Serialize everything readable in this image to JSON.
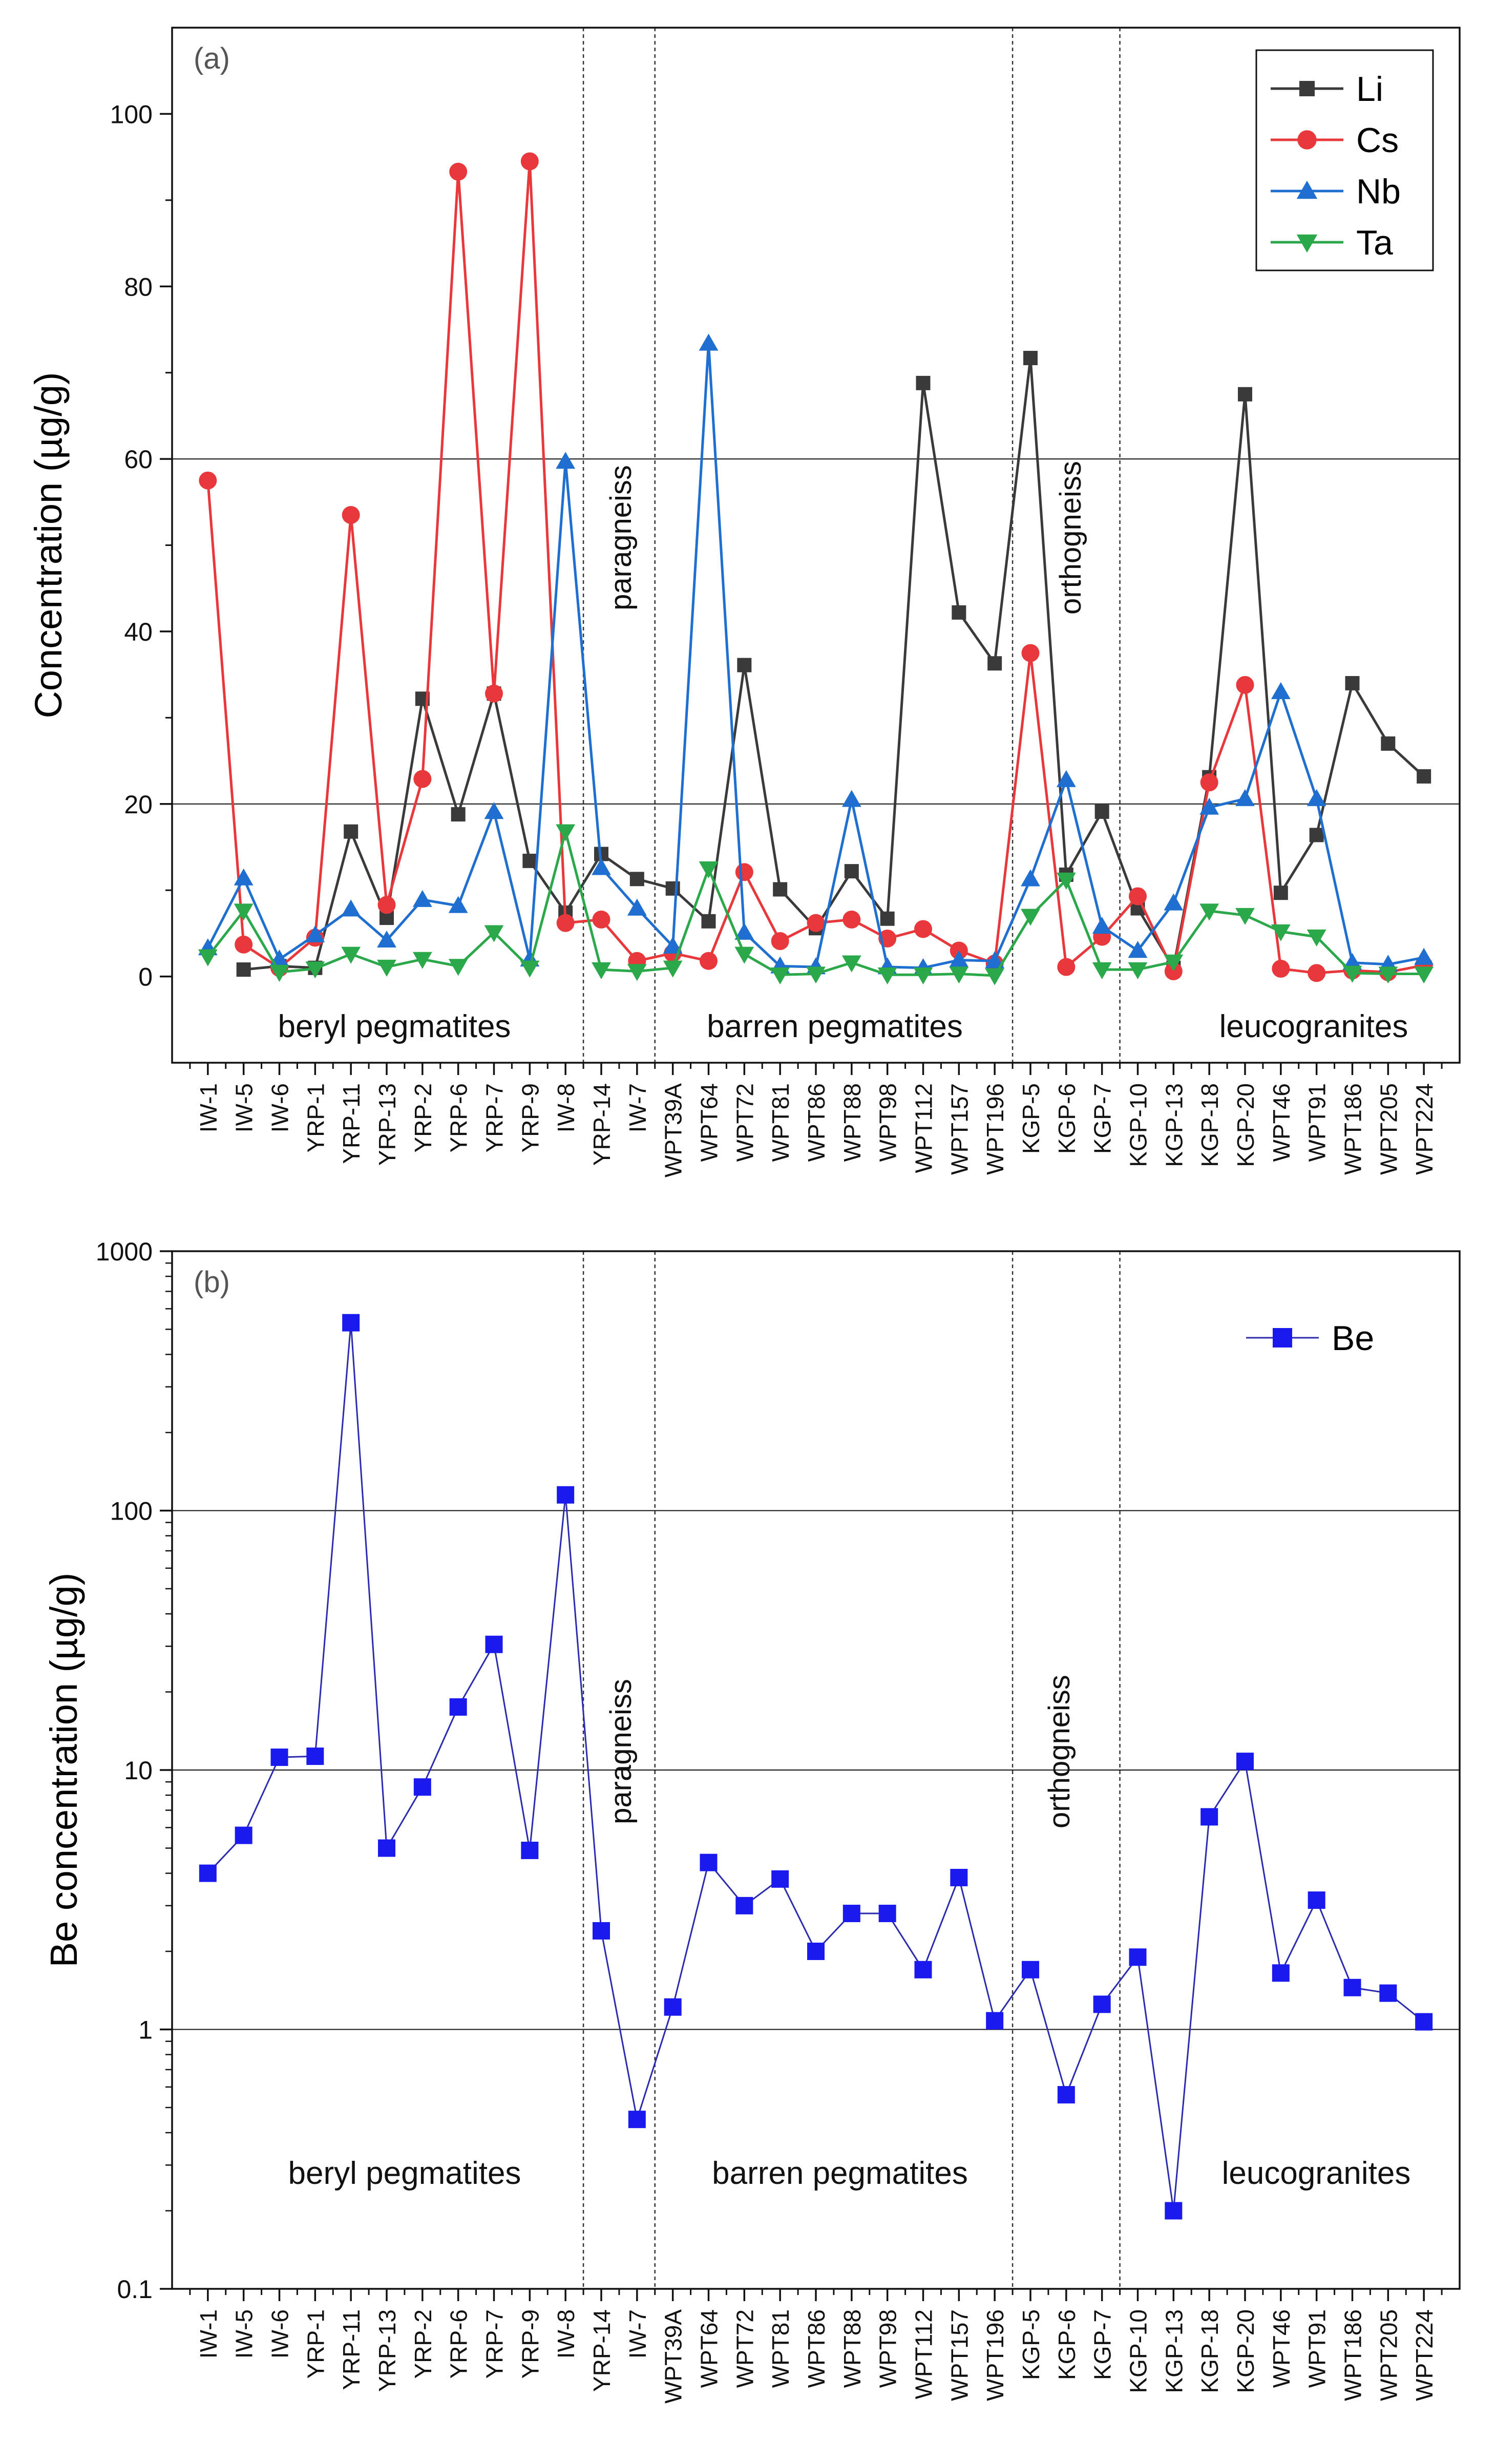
{
  "chart_data": [
    {
      "panel_label": "(a)",
      "type": "line",
      "ylabel": "Concentration (µg/g)",
      "ylim": [
        -10,
        110
      ],
      "yticks": [
        0,
        20,
        40,
        60,
        80,
        100
      ],
      "gridlines_y": [
        20,
        60
      ],
      "categories": [
        "IW-1",
        "IW-5",
        "IW-6",
        "YRP-1",
        "YRP-11",
        "YRP-13",
        "YRP-2",
        "YRP-6",
        "YRP-7",
        "YRP-9",
        "IW-8",
        "YRP-14",
        "IW-7",
        "WPT39A",
        "WPT64",
        "WPT72",
        "WPT81",
        "WPT86",
        "WPT88",
        "WPT98",
        "WPT112",
        "WPT157",
        "WPT196",
        "KGP-5",
        "KGP-6",
        "KGP-7",
        "KGP-10",
        "KGP-13",
        "KGP-18",
        "KGP-20",
        "WPT46",
        "WPT91",
        "WPT186",
        "WPT205",
        "WPT224"
      ],
      "separators_after_index": [
        10,
        12,
        22,
        25
      ],
      "group_labels": [
        "beryl pegmatites",
        "paragneiss",
        "barren pegmatites",
        "orthogneiss",
        "leucogranites"
      ],
      "legend": "top-right",
      "series": [
        {
          "name": "Li",
          "color": "#3a3a3a",
          "marker": "square",
          "values": [
            null,
            0.8,
            1.2,
            1.0,
            16.8,
            6.8,
            32.2,
            18.8,
            32.8,
            13.4,
            7.4,
            14.2,
            11.3,
            10.2,
            6.4,
            36.1,
            10.1,
            5.6,
            12.2,
            6.7,
            68.8,
            42.2,
            36.3,
            71.7,
            11.8,
            19.1,
            7.9,
            1.0,
            23.1,
            67.5,
            9.7,
            16.4,
            34.0,
            27.0,
            23.2
          ]
        },
        {
          "name": "Cs",
          "color": "#e8383b",
          "marker": "circle",
          "values": [
            57.5,
            3.7,
            1.0,
            4.5,
            53.5,
            8.3,
            22.9,
            93.3,
            32.8,
            94.5,
            6.2,
            6.6,
            1.8,
            2.7,
            1.8,
            12.1,
            4.1,
            6.2,
            6.6,
            4.4,
            5.5,
            3.0,
            1.5,
            37.5,
            1.1,
            4.6,
            9.3,
            0.6,
            22.5,
            33.8,
            0.9,
            0.4,
            0.7,
            0.5,
            1.3
          ]
        },
        {
          "name": "Nb",
          "color": "#1f6fd0",
          "marker": "triangle-up",
          "values": [
            3.3,
            11.4,
            2.0,
            4.8,
            7.8,
            4.2,
            8.9,
            8.2,
            19.1,
            2.0,
            59.7,
            12.6,
            7.9,
            3.5,
            73.4,
            5.1,
            1.2,
            1.1,
            20.5,
            1.1,
            1.0,
            1.9,
            1.8,
            11.3,
            22.8,
            5.8,
            3.0,
            8.5,
            19.6,
            20.6,
            33.0,
            20.6,
            1.6,
            1.4,
            2.2
          ]
        },
        {
          "name": "Ta",
          "color": "#2aa84a",
          "marker": "triangle-down",
          "values": [
            2.3,
            7.6,
            0.5,
            0.9,
            2.6,
            1.1,
            2.0,
            1.2,
            5.1,
            1.0,
            16.8,
            0.8,
            0.6,
            1.0,
            12.5,
            2.6,
            0.2,
            0.3,
            1.6,
            0.2,
            0.2,
            0.3,
            0.1,
            7.0,
            11.2,
            0.8,
            0.8,
            1.7,
            7.6,
            7.1,
            5.2,
            4.6,
            0.4,
            0.3,
            0.3
          ]
        }
      ]
    },
    {
      "panel_label": "(b)",
      "type": "line",
      "yscale": "log",
      "ylabel": "Be concentration (µg/g)",
      "ylim": [
        0.1,
        1000
      ],
      "yticks": [
        0.1,
        1,
        10,
        100,
        1000
      ],
      "ytick_labels": [
        "0.1",
        "1",
        "10",
        "100",
        "1000"
      ],
      "gridlines_y": [
        1,
        10,
        100
      ],
      "categories": [
        "IW-1",
        "IW-5",
        "IW-6",
        "YRP-1",
        "YRP-11",
        "YRP-13",
        "YRP-2",
        "YRP-6",
        "YRP-7",
        "YRP-9",
        "IW-8",
        "YRP-14",
        "IW-7",
        "WPT39A",
        "WPT64",
        "WPT72",
        "WPT81",
        "WPT86",
        "WPT88",
        "WPT98",
        "WPT112",
        "WPT157",
        "WPT196",
        "KGP-5",
        "KGP-6",
        "KGP-7",
        "KGP-10",
        "KGP-13",
        "KGP-18",
        "KGP-20",
        "WPT46",
        "WPT91",
        "WPT186",
        "WPT205",
        "WPT224"
      ],
      "separators_after_index": [
        10,
        12,
        22,
        25
      ],
      "group_labels": [
        "beryl pegmatites",
        "paragneiss",
        "barren pegmatites",
        "orthogneiss",
        "leucogranites"
      ],
      "legend": "top-right",
      "series": [
        {
          "name": "Be",
          "color": "#1a1aee",
          "line_color": "#2b2bb0",
          "marker": "square",
          "values": [
            4.0,
            5.6,
            11.2,
            11.3,
            530,
            5.0,
            8.6,
            17.5,
            30.5,
            4.9,
            115,
            2.4,
            0.45,
            1.22,
            4.4,
            3.0,
            3.8,
            2.0,
            2.8,
            2.8,
            1.7,
            3.85,
            1.08,
            1.7,
            0.56,
            1.25,
            1.9,
            0.2,
            6.6,
            10.8,
            1.65,
            3.15,
            1.45,
            1.38,
            1.07
          ]
        }
      ]
    }
  ]
}
